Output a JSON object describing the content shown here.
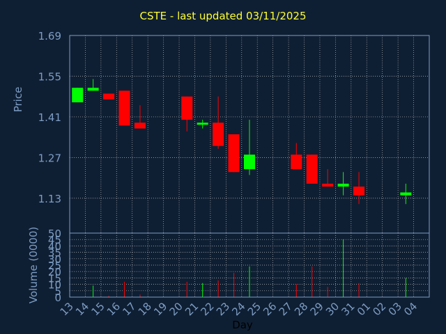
{
  "title": "CSTE - last updated 03/11/2025",
  "colors": {
    "background": "#0f1f33",
    "axis_text": "#7d9dc4",
    "frame": "#7d9dc4",
    "grid": "#bbbbbb",
    "title": "#ffff33",
    "up": "#00ff00",
    "down": "#ff0000"
  },
  "chart_data": [
    {
      "type": "candlestick",
      "title": "CSTE - last updated 03/11/2025",
      "ylabel": "Price",
      "ylim": [
        1.01,
        1.69
      ],
      "yticks": [
        "1.69",
        "1.55",
        "1.41",
        "1.27",
        "1.13"
      ],
      "grid": true,
      "x": [
        "13",
        "14",
        "15",
        "16",
        "17",
        "18",
        "19",
        "20",
        "21",
        "22",
        "23",
        "24",
        "25",
        "26",
        "27",
        "28",
        "29",
        "30",
        "31",
        "01",
        "02",
        "03",
        "04"
      ],
      "candles": [
        {
          "day": "13",
          "open": 1.46,
          "high": 1.51,
          "low": 1.46,
          "close": 1.51
        },
        {
          "day": "14",
          "open": 1.5,
          "high": 1.54,
          "low": 1.5,
          "close": 1.51
        },
        {
          "day": "15",
          "open": 1.49,
          "high": 1.49,
          "low": 1.47,
          "close": 1.47
        },
        {
          "day": "16",
          "open": 1.5,
          "high": 1.5,
          "low": 1.38,
          "close": 1.38
        },
        {
          "day": "17",
          "open": 1.39,
          "high": 1.45,
          "low": 1.37,
          "close": 1.37
        },
        {
          "day": "20",
          "open": 1.48,
          "high": 1.48,
          "low": 1.36,
          "close": 1.4
        },
        {
          "day": "21",
          "open": 1.39,
          "high": 1.4,
          "low": 1.37,
          "close": 1.39
        },
        {
          "day": "22",
          "open": 1.39,
          "high": 1.48,
          "low": 1.3,
          "close": 1.31
        },
        {
          "day": "23",
          "open": 1.35,
          "high": 1.35,
          "low": 1.22,
          "close": 1.22
        },
        {
          "day": "24",
          "open": 1.23,
          "high": 1.4,
          "low": 1.21,
          "close": 1.28
        },
        {
          "day": "27",
          "open": 1.28,
          "high": 1.32,
          "low": 1.23,
          "close": 1.23
        },
        {
          "day": "28",
          "open": 1.28,
          "high": 1.28,
          "low": 1.18,
          "close": 1.18
        },
        {
          "day": "29",
          "open": 1.18,
          "high": 1.23,
          "low": 1.17,
          "close": 1.17
        },
        {
          "day": "30",
          "open": 1.17,
          "high": 1.22,
          "low": 1.14,
          "close": 1.18
        },
        {
          "day": "31",
          "open": 1.17,
          "high": 1.22,
          "low": 1.11,
          "close": 1.14
        },
        {
          "day": "03",
          "open": 1.14,
          "high": 1.18,
          "low": 1.11,
          "close": 1.15
        }
      ]
    },
    {
      "type": "bar",
      "xlabel": "Day",
      "ylabel": "Volume (0000)",
      "ylim": [
        0,
        50
      ],
      "yticks": [
        "50",
        "45",
        "40",
        "35",
        "30",
        "25",
        "20",
        "15",
        "10",
        "5",
        "0"
      ],
      "categories": [
        "13",
        "14",
        "15",
        "16",
        "17",
        "18",
        "19",
        "20",
        "21",
        "22",
        "23",
        "24",
        "25",
        "26",
        "27",
        "28",
        "29",
        "30",
        "31",
        "01",
        "02",
        "03",
        "04"
      ],
      "bars": [
        {
          "day": "14",
          "value": 9,
          "direction": "up"
        },
        {
          "day": "15",
          "value": 1,
          "direction": "down"
        },
        {
          "day": "16",
          "value": 12,
          "direction": "down"
        },
        {
          "day": "17",
          "value": 2,
          "direction": "down"
        },
        {
          "day": "20",
          "value": 12,
          "direction": "down"
        },
        {
          "day": "21",
          "value": 11,
          "direction": "up"
        },
        {
          "day": "22",
          "value": 13,
          "direction": "down"
        },
        {
          "day": "23",
          "value": 19,
          "direction": "down"
        },
        {
          "day": "24",
          "value": 24,
          "direction": "up"
        },
        {
          "day": "27",
          "value": 10,
          "direction": "down"
        },
        {
          "day": "28",
          "value": 24,
          "direction": "down"
        },
        {
          "day": "29",
          "value": 8,
          "direction": "down"
        },
        {
          "day": "30",
          "value": 45,
          "direction": "up"
        },
        {
          "day": "31",
          "value": 11,
          "direction": "down"
        },
        {
          "day": "03",
          "value": 15,
          "direction": "up"
        }
      ]
    }
  ]
}
